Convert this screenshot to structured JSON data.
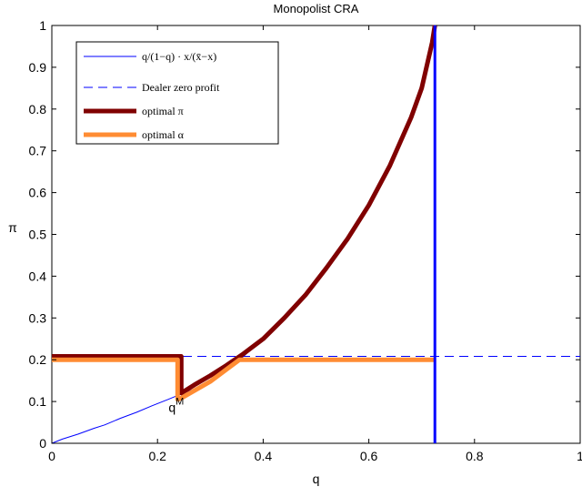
{
  "chart_data": {
    "type": "line",
    "title": "Monopolist CRA",
    "xlabel": "q",
    "ylabel": "π",
    "xlim": [
      0,
      1
    ],
    "ylim": [
      0,
      1
    ],
    "xticks": [
      "0",
      "0.2",
      "0.4",
      "0.6",
      "0.8",
      "1"
    ],
    "yticks": [
      "0",
      "0.1",
      "0.2",
      "0.3",
      "0.4",
      "0.5",
      "0.6",
      "0.7",
      "0.8",
      "0.9",
      "1"
    ],
    "grid": false,
    "legend_position": "top-left",
    "annotations": [
      {
        "text": "q",
        "superscript": "M",
        "x": 0.245,
        "y": 0.08
      }
    ],
    "series": [
      {
        "name": "q/(1−q) · x/(x̄−x)",
        "color": "#0000ff",
        "style": "solid-thin",
        "x": [
          0,
          0.02,
          0.05,
          0.08,
          0.1,
          0.13,
          0.16,
          0.19,
          0.22,
          0.245,
          0.27,
          0.3,
          0.33,
          0.36,
          0.4,
          0.44,
          0.48,
          0.52,
          0.56,
          0.6,
          0.64,
          0.68,
          0.7,
          0.72,
          0.725,
          0.725
        ],
        "y": [
          0,
          0.01,
          0.022,
          0.036,
          0.044,
          0.06,
          0.074,
          0.09,
          0.105,
          0.118,
          0.13,
          0.15,
          0.175,
          0.205,
          0.25,
          0.3,
          0.355,
          0.42,
          0.49,
          0.57,
          0.665,
          0.78,
          0.85,
          0.96,
          1.0,
          0.0
        ]
      },
      {
        "name": "Dealer zero profit",
        "color": "#0000ff",
        "style": "dashed",
        "x": [
          0,
          1
        ],
        "y": [
          0.208,
          0.208
        ]
      },
      {
        "name": "optimal π",
        "color": "#800000",
        "style": "thick",
        "x": [
          0,
          0.245,
          0.245,
          0.27,
          0.3,
          0.33,
          0.36,
          0.4,
          0.44,
          0.48,
          0.52,
          0.56,
          0.6,
          0.64,
          0.68,
          0.7,
          0.72,
          0.725
        ],
        "y": [
          0.208,
          0.208,
          0.12,
          0.14,
          0.162,
          0.186,
          0.212,
          0.25,
          0.3,
          0.355,
          0.42,
          0.49,
          0.57,
          0.665,
          0.78,
          0.85,
          0.96,
          1.0
        ]
      },
      {
        "name": "optimal α",
        "color": "#ff8c33",
        "style": "thick",
        "x": [
          0,
          0.238,
          0.238,
          0.245,
          0.3,
          0.355,
          0.725
        ],
        "y": [
          0.2,
          0.2,
          0.105,
          0.108,
          0.148,
          0.2,
          0.2
        ]
      }
    ]
  }
}
